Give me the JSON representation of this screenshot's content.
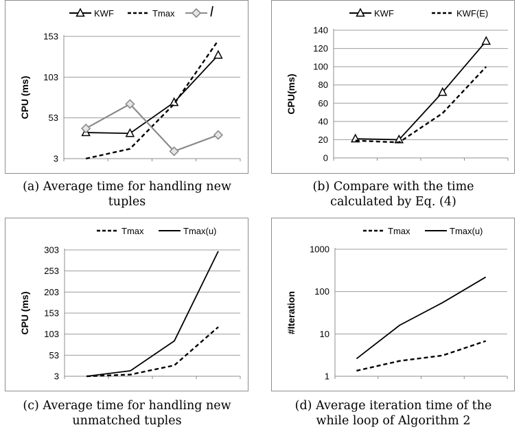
{
  "chart_data": [
    {
      "id": "a",
      "type": "line",
      "caption": [
        "(a) Average time for handling new",
        "tuples"
      ],
      "ylabel": "CPU (ms)",
      "yscale": "linear",
      "ylim": [
        3,
        153
      ],
      "yticks": [
        "3",
        "53",
        "103",
        "153"
      ],
      "x": [
        1,
        2,
        3,
        4
      ],
      "grid": true,
      "legend": "top",
      "series": [
        {
          "name": "KWF",
          "values": [
            35,
            34,
            72,
            130
          ],
          "style": "solid",
          "marker": "triangle",
          "color": "#000000"
        },
        {
          "name": "Tmax",
          "values": [
            3,
            15,
            70,
            148
          ],
          "style": "dashed",
          "marker": "none",
          "color": "#000000"
        },
        {
          "name": "l",
          "values": [
            40,
            70,
            12,
            32
          ],
          "style": "solid",
          "marker": "diamond",
          "color": "#8a8a8a"
        }
      ]
    },
    {
      "id": "b",
      "type": "line",
      "caption": [
        "(b) Compare with the time",
        "calculated by Eq. (4)"
      ],
      "ylabel": "CPU(ms)",
      "yscale": "linear",
      "ylim": [
        0,
        140
      ],
      "yticks": [
        "0",
        "20",
        "40",
        "60",
        "80",
        "100",
        "120",
        "140"
      ],
      "x": [
        1,
        2,
        3,
        4
      ],
      "grid": true,
      "legend": "top",
      "series": [
        {
          "name": "KWF",
          "values": [
            21,
            20,
            72,
            128
          ],
          "style": "solid",
          "marker": "triangle",
          "color": "#000000"
        },
        {
          "name": "KWF(E)",
          "values": [
            19,
            17,
            49,
            100
          ],
          "style": "dashed",
          "marker": "none",
          "color": "#000000"
        }
      ]
    },
    {
      "id": "c",
      "type": "line",
      "caption": [
        "(c) Average time for handling new",
        "unmatched tuples"
      ],
      "ylabel": "CPU (ms)",
      "yscale": "linear",
      "ylim": [
        3,
        303
      ],
      "yticks": [
        "3",
        "53",
        "103",
        "153",
        "203",
        "253",
        "303"
      ],
      "x": [
        1,
        2,
        3,
        4
      ],
      "grid": true,
      "legend": "top",
      "series": [
        {
          "name": "Tmax",
          "values": [
            3,
            7,
            29,
            120
          ],
          "style": "dashed",
          "marker": "none",
          "color": "#000000"
        },
        {
          "name": "Tmax(u)",
          "values": [
            3,
            16,
            87,
            300
          ],
          "style": "solid",
          "marker": "none",
          "color": "#000000"
        }
      ]
    },
    {
      "id": "d",
      "type": "line",
      "caption": [
        "(d) Average iteration time of the",
        "while loop of Algorithm 2"
      ],
      "ylabel": "#Iteration",
      "yscale": "log",
      "ylim": [
        1,
        1000
      ],
      "yticks": [
        "1",
        "10",
        "100",
        "1000"
      ],
      "x": [
        1,
        2,
        3,
        4
      ],
      "grid": true,
      "legend": "top",
      "series": [
        {
          "name": "Tmax",
          "values": [
            1.35,
            2.3,
            3.1,
            6.8
          ],
          "style": "dashed",
          "marker": "none",
          "color": "#000000"
        },
        {
          "name": "Tmax(u)",
          "values": [
            2.6,
            16,
            55,
            220
          ],
          "style": "solid",
          "marker": "none",
          "color": "#000000"
        }
      ]
    }
  ]
}
